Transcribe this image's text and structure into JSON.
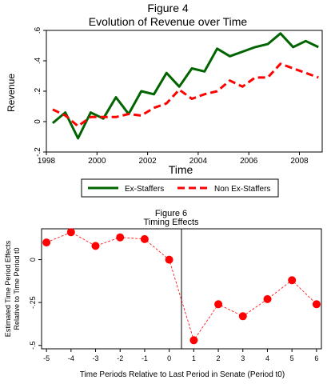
{
  "chart_data": [
    {
      "type": "line",
      "title": "Figure 4",
      "subtitle": "Evolution of Revenue over Time",
      "xlabel": "Time",
      "ylabel": "Revenue",
      "xlim": [
        1998,
        2008.9
      ],
      "ylim": [
        -0.2,
        0.6
      ],
      "x_ticks": [
        1998,
        2000,
        2002,
        2004,
        2006,
        2008
      ],
      "x_tick_labels": [
        "1998",
        "2000",
        "2002",
        "2004",
        "2006",
        "2008"
      ],
      "y_ticks": [
        -0.2,
        0,
        0.2,
        0.4,
        0.6
      ],
      "y_tick_labels": [
        "-.2",
        "0",
        ".2",
        ".4",
        ".6"
      ],
      "grid": false,
      "legend_position": "bottom",
      "series": [
        {
          "name": "Ex-Staffers",
          "color": "#006400",
          "style": "solid",
          "x": [
            1998.25,
            1998.75,
            1999.25,
            1999.75,
            2000.25,
            2000.75,
            2001.25,
            2001.75,
            2002.25,
            2002.75,
            2003.25,
            2003.75,
            2004.25,
            2004.75,
            2005.25,
            2005.75,
            2006.25,
            2006.75,
            2007.25,
            2007.75,
            2008.25,
            2008.75
          ],
          "y": [
            -0.01,
            0.06,
            -0.11,
            0.06,
            0.02,
            0.16,
            0.05,
            0.2,
            0.18,
            0.32,
            0.23,
            0.35,
            0.33,
            0.48,
            0.43,
            0.46,
            0.49,
            0.51,
            0.58,
            0.49,
            0.53,
            0.49
          ]
        },
        {
          "name": "Non Ex-Staffers",
          "color": "#ff0000",
          "style": "dashed",
          "x": [
            1998.25,
            1998.75,
            1999.25,
            1999.75,
            2000.25,
            2000.75,
            2001.25,
            2001.75,
            2002.25,
            2002.75,
            2003.25,
            2003.75,
            2004.25,
            2004.75,
            2005.25,
            2005.75,
            2006.25,
            2006.75,
            2007.25,
            2007.75,
            2008.25,
            2008.75
          ],
          "y": [
            0.08,
            0.04,
            -0.03,
            0.03,
            0.03,
            0.03,
            0.05,
            0.04,
            0.09,
            0.12,
            0.21,
            0.15,
            0.18,
            0.2,
            0.27,
            0.23,
            0.29,
            0.29,
            0.38,
            0.35,
            0.32,
            0.29
          ]
        }
      ]
    },
    {
      "type": "scatter",
      "title": "Figure 6",
      "subtitle": "Timing Effects",
      "xlabel": "Time Periods Relative to Last Period in Senate (Period t0)",
      "ylabel": "Estimated Time Period Effects Relative to Time Period t0",
      "ylabel_lines": [
        "Estimated Time Period Effects",
        "Relative to Time Period t0"
      ],
      "xlim": [
        -5.2,
        6.2
      ],
      "ylim": [
        -0.52,
        0.18
      ],
      "x_ticks": [
        -5,
        -4,
        -3,
        -2,
        -1,
        0,
        1,
        2,
        3,
        4,
        5,
        6
      ],
      "x_tick_labels": [
        "-5",
        "-4",
        "-3",
        "-2",
        "-1",
        "0",
        "1",
        "2",
        "3",
        "4",
        "5",
        "6"
      ],
      "y_ticks": [
        0,
        -0.25,
        -0.5
      ],
      "y_tick_labels": [
        "0",
        "-.25",
        "-.5"
      ],
      "reference_line_x": 0.5,
      "grid": false,
      "series": [
        {
          "color": "#ff0000",
          "style": "dashed-with-markers",
          "x": [
            -5,
            -4,
            -3,
            -2,
            -1,
            0,
            1,
            2,
            3,
            4,
            5,
            6
          ],
          "y": [
            0.1,
            0.16,
            0.08,
            0.13,
            0.12,
            0.0,
            -0.47,
            -0.26,
            -0.33,
            -0.23,
            -0.12,
            -0.26
          ]
        }
      ]
    }
  ]
}
